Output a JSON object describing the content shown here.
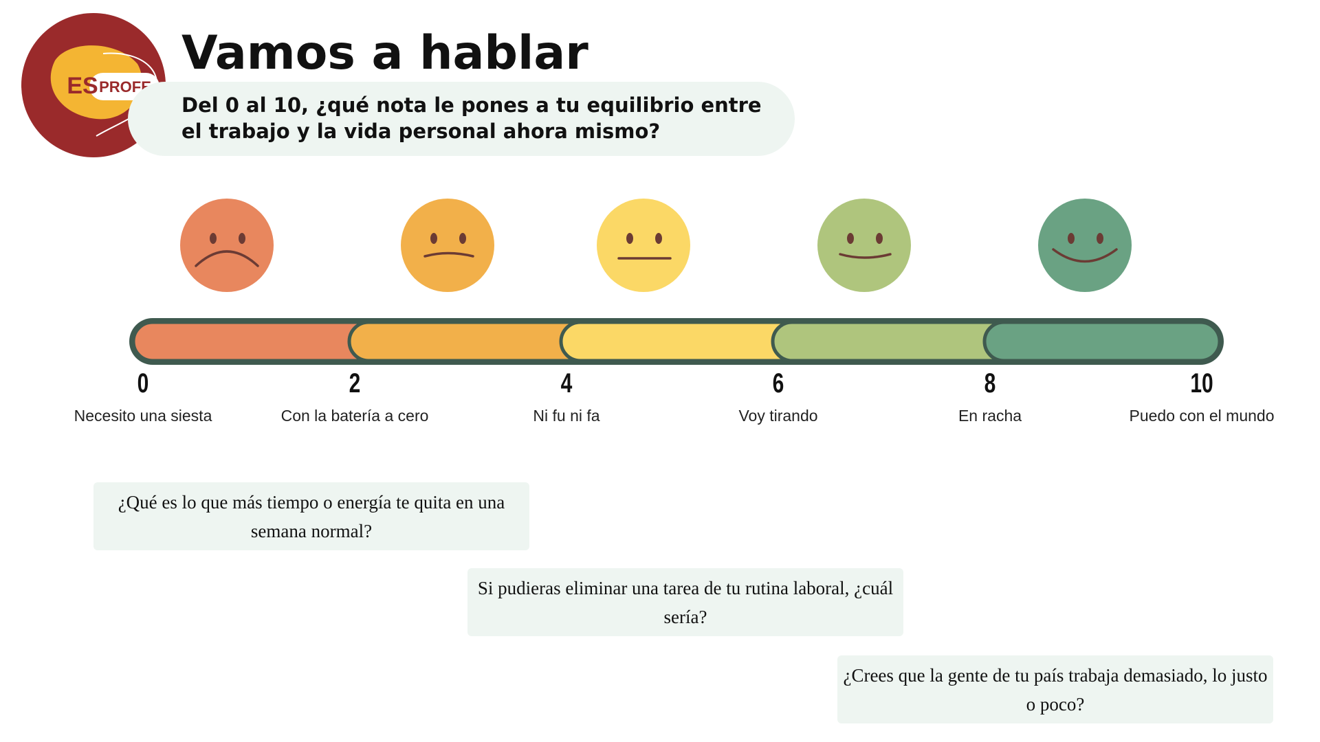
{
  "logo": {
    "left": "ES",
    "right": "PROFE"
  },
  "header": {
    "title": "Vamos a hablar",
    "question": "Del 0 al 10, ¿qué nota le pones a tu equilibrio entre el trabajo y la vida personal ahora mismo?"
  },
  "scale": {
    "ticks": [
      {
        "value": 0,
        "label": "Necesito una siesta"
      },
      {
        "value": 2,
        "label": "Con la batería a cero"
      },
      {
        "value": 4,
        "label": "Ni fu ni fa"
      },
      {
        "value": 6,
        "label": "Voy tirando"
      },
      {
        "value": 8,
        "label": "En racha"
      },
      {
        "value": 10,
        "label": "Puedo con el mundo"
      }
    ]
  },
  "questions": [
    "¿Qué es lo que más tiempo o energía te quita en una semana normal?",
    "Si pudieras eliminar una tarea de tu rutina laboral, ¿cuál sería?",
    "¿Crees que la gente de tu país trabaja demasiado, lo justo o poco?"
  ]
}
